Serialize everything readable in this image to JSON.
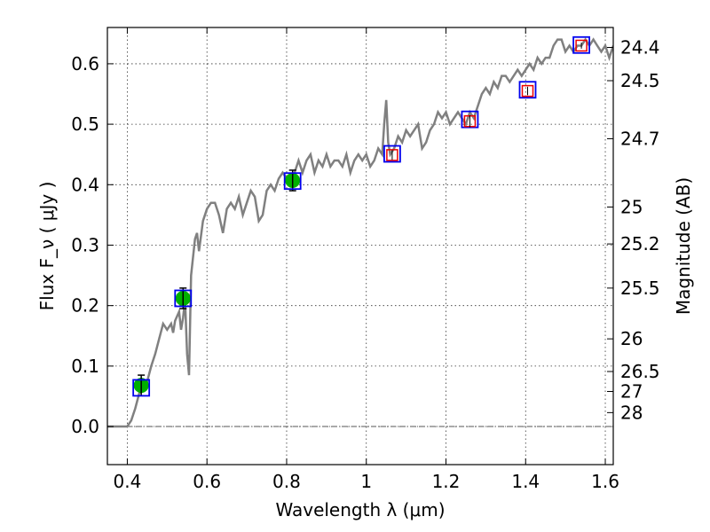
{
  "chart_data": {
    "type": "scatter",
    "xlabel": "Wavelength  λ (μm)",
    "ylabel": "Flux  F_ν  ( μJy )",
    "ylabel_right": "Magnitude (AB)",
    "xlim": [
      0.35,
      1.62
    ],
    "ylim": [
      -0.063,
      0.66
    ],
    "x_ticks": [
      0.4,
      0.6,
      0.8,
      1.0,
      1.2,
      1.4,
      1.6
    ],
    "x_tick_labels": [
      "0.4",
      "0.6",
      "0.8",
      "1",
      "1.2",
      "1.4",
      "1.6"
    ],
    "y_ticks": [
      0.0,
      0.1,
      0.2,
      0.3,
      0.4,
      0.5,
      0.6
    ],
    "y_tick_labels": [
      "0.0",
      "0.1",
      "0.2",
      "0.3",
      "0.4",
      "0.5",
      "0.6"
    ],
    "mag_ticks": [
      {
        "label": "24.4",
        "flux": 0.627
      },
      {
        "label": "24.5",
        "flux": 0.572
      },
      {
        "label": "24.7",
        "flux": 0.476
      },
      {
        "label": "25",
        "flux": 0.363
      },
      {
        "label": "25.2",
        "flux": 0.302
      },
      {
        "label": "25.5",
        "flux": 0.229
      },
      {
        "label": "26",
        "flux": 0.145
      },
      {
        "label": "26.5",
        "flux": 0.091
      },
      {
        "label": "27",
        "flux": 0.058
      },
      {
        "label": "28",
        "flux": 0.023
      }
    ],
    "grid": true,
    "series": [
      {
        "type": "line",
        "color": "#808080",
        "points": [
          [
            0.35,
            0.0
          ],
          [
            0.4,
            0.0
          ],
          [
            0.41,
            0.01
          ],
          [
            0.42,
            0.03
          ],
          [
            0.43,
            0.055
          ],
          [
            0.44,
            0.06
          ],
          [
            0.45,
            0.075
          ],
          [
            0.46,
            0.1
          ],
          [
            0.47,
            0.12
          ],
          [
            0.48,
            0.145
          ],
          [
            0.49,
            0.17
          ],
          [
            0.5,
            0.16
          ],
          [
            0.51,
            0.17
          ],
          [
            0.515,
            0.155
          ],
          [
            0.52,
            0.175
          ],
          [
            0.53,
            0.19
          ],
          [
            0.535,
            0.16
          ],
          [
            0.54,
            0.18
          ],
          [
            0.545,
            0.21
          ],
          [
            0.55,
            0.12
          ],
          [
            0.555,
            0.085
          ],
          [
            0.56,
            0.25
          ],
          [
            0.57,
            0.31
          ],
          [
            0.575,
            0.32
          ],
          [
            0.58,
            0.29
          ],
          [
            0.59,
            0.34
          ],
          [
            0.6,
            0.36
          ],
          [
            0.61,
            0.37
          ],
          [
            0.62,
            0.37
          ],
          [
            0.63,
            0.35
          ],
          [
            0.64,
            0.32
          ],
          [
            0.65,
            0.36
          ],
          [
            0.66,
            0.37
          ],
          [
            0.67,
            0.36
          ],
          [
            0.68,
            0.38
          ],
          [
            0.69,
            0.35
          ],
          [
            0.7,
            0.37
          ],
          [
            0.71,
            0.39
          ],
          [
            0.72,
            0.38
          ],
          [
            0.73,
            0.34
          ],
          [
            0.74,
            0.35
          ],
          [
            0.75,
            0.39
          ],
          [
            0.76,
            0.4
          ],
          [
            0.77,
            0.39
          ],
          [
            0.78,
            0.41
          ],
          [
            0.79,
            0.42
          ],
          [
            0.8,
            0.41
          ],
          [
            0.81,
            0.4
          ],
          [
            0.82,
            0.42
          ],
          [
            0.83,
            0.44
          ],
          [
            0.84,
            0.42
          ],
          [
            0.85,
            0.44
          ],
          [
            0.86,
            0.45
          ],
          [
            0.87,
            0.42
          ],
          [
            0.88,
            0.44
          ],
          [
            0.89,
            0.43
          ],
          [
            0.9,
            0.45
          ],
          [
            0.91,
            0.43
          ],
          [
            0.92,
            0.44
          ],
          [
            0.93,
            0.44
          ],
          [
            0.94,
            0.43
          ],
          [
            0.95,
            0.45
          ],
          [
            0.96,
            0.42
          ],
          [
            0.97,
            0.44
          ],
          [
            0.98,
            0.45
          ],
          [
            0.99,
            0.44
          ],
          [
            1.0,
            0.45
          ],
          [
            1.01,
            0.43
          ],
          [
            1.02,
            0.44
          ],
          [
            1.03,
            0.46
          ],
          [
            1.04,
            0.45
          ],
          [
            1.045,
            0.5
          ],
          [
            1.05,
            0.54
          ],
          [
            1.055,
            0.47
          ],
          [
            1.06,
            0.45
          ],
          [
            1.07,
            0.46
          ],
          [
            1.08,
            0.48
          ],
          [
            1.09,
            0.47
          ],
          [
            1.1,
            0.49
          ],
          [
            1.11,
            0.48
          ],
          [
            1.12,
            0.49
          ],
          [
            1.13,
            0.5
          ],
          [
            1.14,
            0.46
          ],
          [
            1.15,
            0.47
          ],
          [
            1.16,
            0.49
          ],
          [
            1.17,
            0.5
          ],
          [
            1.18,
            0.52
          ],
          [
            1.19,
            0.51
          ],
          [
            1.2,
            0.52
          ],
          [
            1.21,
            0.5
          ],
          [
            1.22,
            0.51
          ],
          [
            1.23,
            0.52
          ],
          [
            1.24,
            0.51
          ],
          [
            1.25,
            0.5
          ],
          [
            1.26,
            0.52
          ],
          [
            1.27,
            0.51
          ],
          [
            1.28,
            0.53
          ],
          [
            1.29,
            0.55
          ],
          [
            1.3,
            0.56
          ],
          [
            1.31,
            0.55
          ],
          [
            1.32,
            0.57
          ],
          [
            1.33,
            0.56
          ],
          [
            1.34,
            0.58
          ],
          [
            1.35,
            0.58
          ],
          [
            1.36,
            0.57
          ],
          [
            1.37,
            0.58
          ],
          [
            1.38,
            0.59
          ],
          [
            1.39,
            0.58
          ],
          [
            1.4,
            0.59
          ],
          [
            1.41,
            0.6
          ],
          [
            1.42,
            0.59
          ],
          [
            1.43,
            0.61
          ],
          [
            1.44,
            0.6
          ],
          [
            1.45,
            0.61
          ],
          [
            1.46,
            0.61
          ],
          [
            1.47,
            0.63
          ],
          [
            1.48,
            0.64
          ],
          [
            1.49,
            0.64
          ],
          [
            1.5,
            0.62
          ],
          [
            1.51,
            0.63
          ],
          [
            1.52,
            0.62
          ],
          [
            1.53,
            0.63
          ],
          [
            1.54,
            0.63
          ],
          [
            1.55,
            0.64
          ],
          [
            1.56,
            0.63
          ],
          [
            1.57,
            0.64
          ],
          [
            1.58,
            0.63
          ],
          [
            1.59,
            0.62
          ],
          [
            1.6,
            0.63
          ],
          [
            1.61,
            0.61
          ],
          [
            1.62,
            0.63
          ]
        ]
      },
      {
        "type": "scatter",
        "marker": "circle",
        "color": "#00b000",
        "points": [
          {
            "x": 0.435,
            "y": 0.068,
            "err": 0.017
          },
          {
            "x": 0.54,
            "y": 0.212,
            "err": 0.017
          },
          {
            "x": 0.815,
            "y": 0.407,
            "err": 0.017
          }
        ]
      },
      {
        "type": "scatter",
        "marker": "square-open",
        "color": "#0000ee",
        "points": [
          {
            "x": 0.435,
            "y": 0.064
          },
          {
            "x": 0.54,
            "y": 0.212
          },
          {
            "x": 0.815,
            "y": 0.406
          },
          {
            "x": 1.065,
            "y": 0.451
          },
          {
            "x": 1.26,
            "y": 0.508
          },
          {
            "x": 1.405,
            "y": 0.557
          },
          {
            "x": 1.54,
            "y": 0.631
          }
        ]
      },
      {
        "type": "scatter",
        "marker": "square-open-small",
        "color": "#ee0000",
        "points": [
          {
            "x": 1.065,
            "y": 0.449,
            "err": 0.008
          },
          {
            "x": 1.26,
            "y": 0.505,
            "err": 0.01
          },
          {
            "x": 1.405,
            "y": 0.555,
            "err": 0.007
          },
          {
            "x": 1.54,
            "y": 0.63,
            "err": 0.005
          }
        ]
      }
    ]
  }
}
